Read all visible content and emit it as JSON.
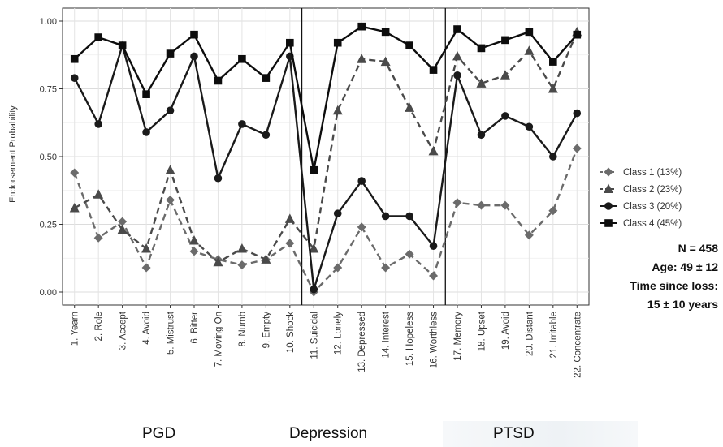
{
  "chart_data": {
    "type": "line",
    "ylabel": "Endorsement Probability",
    "xlabel": "",
    "ylim": [
      0,
      1
    ],
    "yticks": [
      "0.00",
      "0.25",
      "0.50",
      "0.75",
      "1.00"
    ],
    "grid": true,
    "legend_position": "right",
    "categories": [
      "1. Yearn",
      "2. Role",
      "3. Accept",
      "4. Avoid",
      "5. Mistrust",
      "6. Bitter",
      "7. Moving On",
      "8. Numb",
      "9. Empty",
      "10. Shock",
      "11. Suicidal",
      "12. Lonely",
      "13. Depressed",
      "14. Interest",
      "15. Hopeless",
      "16. Worthless",
      "17. Memory",
      "18. Upset",
      "19. Avoid",
      "20. Distant",
      "21. Irritable",
      "22. Concentrate"
    ],
    "dividers_after": [
      "10. Shock",
      "16. Worthless"
    ],
    "series": [
      {
        "name": "Class 1 (13%)",
        "color": "#6b6b6b",
        "marker": "diamond",
        "dash": true,
        "values": [
          0.44,
          0.2,
          0.26,
          0.09,
          0.34,
          0.15,
          0.12,
          0.1,
          0.12,
          0.18,
          0.0,
          0.09,
          0.24,
          0.09,
          0.14,
          0.06,
          0.33,
          0.32,
          0.32,
          0.21,
          0.3,
          0.53
        ]
      },
      {
        "name": "Class 2 (23%)",
        "color": "#4a4a4a",
        "marker": "triangle",
        "dash": true,
        "values": [
          0.31,
          0.36,
          0.23,
          0.16,
          0.45,
          0.19,
          0.11,
          0.16,
          0.12,
          0.27,
          0.16,
          0.67,
          0.86,
          0.85,
          0.68,
          0.52,
          0.87,
          0.77,
          0.8,
          0.89,
          0.75,
          0.96
        ]
      },
      {
        "name": "Class 3 (20%)",
        "color": "#1a1a1a",
        "marker": "circle",
        "dash": false,
        "values": [
          0.79,
          0.62,
          0.91,
          0.59,
          0.67,
          0.87,
          0.42,
          0.62,
          0.58,
          0.87,
          0.01,
          0.29,
          0.41,
          0.28,
          0.28,
          0.17,
          0.8,
          0.58,
          0.65,
          0.61,
          0.5,
          0.66
        ]
      },
      {
        "name": "Class 4 (45%)",
        "color": "#0d0d0d",
        "marker": "square",
        "dash": false,
        "values": [
          0.86,
          0.94,
          0.91,
          0.73,
          0.88,
          0.95,
          0.78,
          0.86,
          0.79,
          0.92,
          0.45,
          0.92,
          0.98,
          0.96,
          0.91,
          0.82,
          0.97,
          0.9,
          0.93,
          0.96,
          0.85,
          0.95
        ]
      }
    ]
  },
  "stats": {
    "n": "N = 458",
    "age": "Age: 49 ± 12",
    "time_label": "Time since loss:",
    "time_value": "15 ± 10 years"
  },
  "sections": {
    "pgd": "PGD",
    "depression": "Depression",
    "ptsd": "PTSD"
  }
}
